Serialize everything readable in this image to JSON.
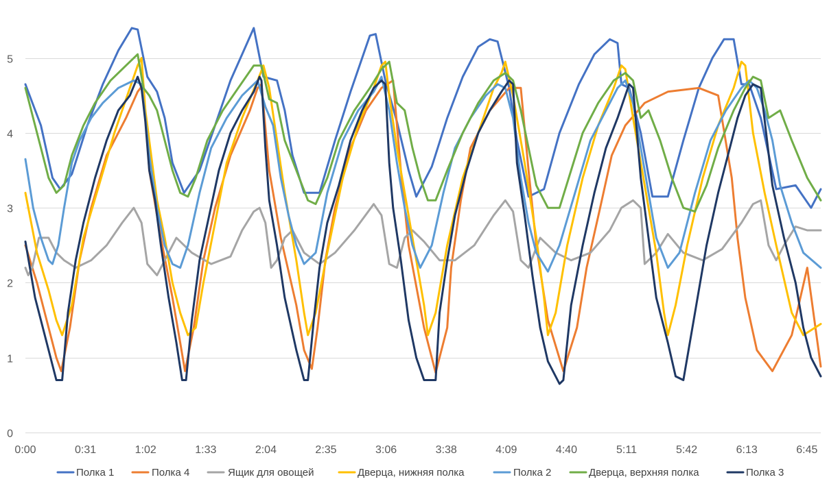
{
  "chart_data": {
    "type": "line",
    "title": "",
    "xlabel": "",
    "ylabel": "",
    "ylim": [
      0,
      5.5
    ],
    "x_tick_labels": [
      "0:00",
      "0:31",
      "1:02",
      "1:33",
      "2:04",
      "2:35",
      "3:06",
      "3:38",
      "4:09",
      "4:40",
      "5:11",
      "5:42",
      "6:13",
      "6:45"
    ],
    "y_tick_labels": [
      "0",
      "1",
      "2",
      "3",
      "4",
      "5"
    ],
    "x_range_minutes": [
      0,
      411
    ],
    "grid": "horizontal",
    "legend_position": "bottom",
    "series": [
      {
        "name": "Полка 1",
        "color": "#4472C4",
        "x": [
          0,
          8,
          14,
          18,
          24,
          32,
          40,
          48,
          55,
          58,
          63,
          68,
          72,
          76,
          82,
          90,
          98,
          106,
          118,
          123,
          130,
          134,
          138,
          144,
          152,
          160,
          168,
          178,
          181,
          186,
          192,
          198,
          202,
          210,
          218,
          226,
          234,
          240,
          244,
          250,
          254,
          260,
          268,
          276,
          286,
          294,
          302,
          306,
          308,
          312,
          318,
          324,
          332,
          340,
          348,
          355,
          361,
          366,
          370,
          374,
          380,
          388,
          398,
          406,
          411
        ],
        "values": [
          4.65,
          4.1,
          3.4,
          3.25,
          3.45,
          4.1,
          4.65,
          5.1,
          5.4,
          5.38,
          4.75,
          4.55,
          4.2,
          3.6,
          3.2,
          3.5,
          4.1,
          4.7,
          5.4,
          4.75,
          4.7,
          4.3,
          3.7,
          3.2,
          3.2,
          3.9,
          4.55,
          5.3,
          5.32,
          4.7,
          4.15,
          3.5,
          3.15,
          3.55,
          4.2,
          4.75,
          5.15,
          5.25,
          5.22,
          4.6,
          3.9,
          3.15,
          3.25,
          4.0,
          4.65,
          5.05,
          5.25,
          5.2,
          4.65,
          4.6,
          4.0,
          3.15,
          3.15,
          3.9,
          4.6,
          5.0,
          5.25,
          5.25,
          4.65,
          4.65,
          4.2,
          3.25,
          3.3,
          3.0,
          3.25
        ]
      },
      {
        "name": "Полка 4",
        "color": "#ED7D31",
        "x": [
          0,
          6,
          12,
          16,
          18.5,
          23,
          28,
          34,
          42,
          52,
          58,
          61,
          64,
          70,
          76,
          80,
          82.5,
          87,
          92,
          98,
          106,
          116,
          120,
          122,
          126,
          132,
          140,
          144,
          148,
          151,
          155,
          160,
          168,
          176,
          184,
          190,
          194,
          198,
          206,
          212,
          218,
          220,
          225,
          230,
          240,
          250,
          256,
          260,
          264,
          270,
          278,
          285,
          290,
          297,
          303,
          310,
          320,
          332,
          348,
          358,
          365,
          368,
          372,
          378,
          386,
          396,
          404,
          411
        ],
        "values": [
          2.5,
          2.0,
          1.4,
          1.0,
          0.82,
          1.4,
          2.3,
          3.0,
          3.7,
          4.2,
          4.55,
          4.65,
          3.5,
          2.6,
          1.8,
          1.2,
          0.82,
          1.4,
          2.3,
          3.0,
          3.7,
          4.3,
          4.6,
          4.65,
          3.5,
          2.6,
          1.7,
          1.1,
          0.85,
          1.4,
          2.3,
          3.0,
          3.8,
          4.3,
          4.6,
          4.7,
          3.5,
          2.5,
          1.4,
          0.8,
          1.4,
          2.2,
          3.1,
          3.8,
          4.3,
          4.6,
          4.6,
          3.5,
          2.5,
          1.5,
          0.82,
          1.4,
          2.2,
          3.0,
          3.7,
          4.1,
          4.4,
          4.55,
          4.6,
          4.5,
          3.4,
          2.6,
          1.8,
          1.1,
          0.82,
          1.3,
          2.2,
          0.88
        ]
      },
      {
        "name": "Ящик для овощей",
        "color": "#A5A5A5",
        "x": [
          0,
          1.5,
          3.5,
          7,
          12,
          16,
          20,
          26,
          34,
          42,
          50,
          56,
          60,
          63,
          68,
          72,
          78,
          86,
          96,
          106,
          112,
          118,
          121,
          124,
          127,
          130,
          134,
          138,
          144,
          152,
          160,
          170,
          180,
          184,
          188,
          192,
          196,
          200,
          206,
          214,
          222,
          232,
          242,
          248,
          252,
          256,
          260,
          266,
          274,
          282,
          292,
          302,
          308,
          314,
          318,
          320,
          326,
          332,
          340,
          350,
          360,
          370,
          376,
          380,
          384,
          388,
          392,
          398,
          404,
          411
        ],
        "values": [
          2.2,
          2.1,
          2.2,
          2.6,
          2.6,
          2.4,
          2.3,
          2.2,
          2.3,
          2.5,
          2.8,
          3.0,
          2.8,
          2.25,
          2.1,
          2.3,
          2.6,
          2.4,
          2.25,
          2.35,
          2.7,
          2.95,
          3.0,
          2.8,
          2.2,
          2.3,
          2.6,
          2.7,
          2.4,
          2.25,
          2.4,
          2.7,
          3.05,
          2.9,
          2.25,
          2.2,
          2.6,
          2.7,
          2.55,
          2.3,
          2.3,
          2.5,
          2.9,
          3.1,
          2.95,
          2.3,
          2.2,
          2.6,
          2.4,
          2.3,
          2.4,
          2.7,
          3.0,
          3.1,
          3.0,
          2.25,
          2.4,
          2.65,
          2.4,
          2.3,
          2.45,
          2.8,
          3.05,
          3.1,
          2.5,
          2.3,
          2.5,
          2.75,
          2.7,
          2.7
        ]
      },
      {
        "name": "Дверца, нижняя полка",
        "color": "#FFC000",
        "x": [
          0,
          6,
          12,
          16,
          19,
          24,
          30,
          38,
          46,
          54,
          58,
          60,
          62,
          65,
          68,
          72,
          76,
          80,
          84,
          88,
          92,
          98,
          104,
          112,
          120,
          123,
          126,
          130,
          134,
          140,
          144,
          146,
          150,
          156,
          164,
          172,
          180,
          184,
          186,
          188,
          192,
          196,
          200,
          206,
          208,
          212,
          218,
          226,
          234,
          242,
          246,
          248,
          252,
          258,
          264,
          268,
          270,
          274,
          280,
          288,
          296,
          304,
          308,
          310,
          314,
          320,
          326,
          330,
          332,
          336,
          342,
          350,
          358,
          366,
          370,
          372,
          376,
          382,
          388,
          396,
          402,
          411
        ],
        "values": [
          3.2,
          2.4,
          1.9,
          1.5,
          1.3,
          1.7,
          2.6,
          3.3,
          4.0,
          4.6,
          4.9,
          5.0,
          4.3,
          3.7,
          3.1,
          2.6,
          2.0,
          1.6,
          1.3,
          1.4,
          2.0,
          2.8,
          3.6,
          4.2,
          4.7,
          4.9,
          4.6,
          3.9,
          3.2,
          2.3,
          1.6,
          1.3,
          1.6,
          2.4,
          3.4,
          4.1,
          4.6,
          4.9,
          4.95,
          4.5,
          3.8,
          3.2,
          2.6,
          1.7,
          1.3,
          1.6,
          2.5,
          3.4,
          4.0,
          4.6,
          4.8,
          4.95,
          4.5,
          3.6,
          2.6,
          1.8,
          1.3,
          1.6,
          2.5,
          3.4,
          4.1,
          4.6,
          4.9,
          4.85,
          4.2,
          3.3,
          2.4,
          1.6,
          1.3,
          1.7,
          2.5,
          3.4,
          4.1,
          4.6,
          4.95,
          4.9,
          4.0,
          3.2,
          2.5,
          1.6,
          1.3,
          1.45
        ]
      },
      {
        "name": "Полка 2",
        "color": "#5B9BD5",
        "x": [
          0,
          4,
          8,
          12,
          14,
          17,
          20,
          24,
          28,
          34,
          40,
          48,
          56,
          60,
          62,
          64,
          68,
          72,
          76,
          80,
          84,
          90,
          96,
          104,
          112,
          120,
          124,
          128,
          132,
          136,
          140,
          144,
          150,
          156,
          164,
          172,
          180,
          184,
          188,
          192,
          196,
          200,
          204,
          210,
          216,
          222,
          230,
          238,
          244,
          248,
          252,
          256,
          260,
          264,
          270,
          276,
          284,
          292,
          300,
          306,
          310,
          314,
          318,
          322,
          326,
          332,
          338,
          346,
          354,
          362,
          370,
          374,
          378,
          382,
          386,
          390,
          396,
          402,
          411
        ],
        "values": [
          3.65,
          3.0,
          2.6,
          2.3,
          2.25,
          2.5,
          3.0,
          3.6,
          3.9,
          4.2,
          4.4,
          4.6,
          4.7,
          4.65,
          4.2,
          3.7,
          3.0,
          2.5,
          2.25,
          2.2,
          2.5,
          3.2,
          3.8,
          4.2,
          4.5,
          4.7,
          4.35,
          4.1,
          3.4,
          2.9,
          2.5,
          2.25,
          2.4,
          3.2,
          3.9,
          4.3,
          4.55,
          4.75,
          4.3,
          3.6,
          3.0,
          2.5,
          2.2,
          2.5,
          3.2,
          3.8,
          4.2,
          4.5,
          4.65,
          4.6,
          4.2,
          3.4,
          2.8,
          2.4,
          2.15,
          2.5,
          3.2,
          3.9,
          4.3,
          4.6,
          4.7,
          4.4,
          3.8,
          3.2,
          2.6,
          2.2,
          2.4,
          3.2,
          3.9,
          4.3,
          4.6,
          4.7,
          4.6,
          4.3,
          3.9,
          3.3,
          2.8,
          2.4,
          2.2
        ]
      },
      {
        "name": "Дверца, верхняя полка",
        "color": "#70AD47",
        "x": [
          0,
          4,
          8,
          12,
          16,
          20,
          24,
          30,
          36,
          44,
          52,
          58,
          61,
          64,
          68,
          72,
          76,
          80,
          84,
          88,
          94,
          102,
          110,
          118,
          122,
          126,
          130,
          134,
          140,
          146,
          150,
          156,
          162,
          170,
          178,
          184,
          188,
          192,
          196,
          200,
          204,
          208,
          212,
          218,
          226,
          234,
          242,
          248,
          252,
          256,
          260,
          264,
          270,
          276,
          282,
          288,
          296,
          304,
          310,
          314,
          318,
          322,
          328,
          334,
          340,
          346,
          352,
          358,
          366,
          372,
          376,
          380,
          384,
          390,
          396,
          404,
          411
        ],
        "values": [
          4.6,
          4.2,
          3.8,
          3.4,
          3.2,
          3.3,
          3.7,
          4.1,
          4.4,
          4.7,
          4.9,
          5.05,
          4.6,
          4.5,
          4.3,
          3.9,
          3.5,
          3.2,
          3.15,
          3.4,
          3.9,
          4.3,
          4.6,
          4.9,
          4.9,
          4.45,
          4.4,
          3.9,
          3.5,
          3.1,
          3.05,
          3.4,
          3.9,
          4.3,
          4.6,
          4.85,
          4.95,
          4.4,
          4.3,
          3.8,
          3.4,
          3.1,
          3.1,
          3.5,
          4.0,
          4.4,
          4.7,
          4.8,
          4.7,
          4.3,
          3.8,
          3.3,
          3.0,
          3.0,
          3.5,
          4.0,
          4.4,
          4.7,
          4.8,
          4.7,
          4.2,
          4.3,
          3.9,
          3.4,
          3.0,
          2.95,
          3.3,
          3.8,
          4.3,
          4.6,
          4.75,
          4.7,
          4.2,
          4.3,
          3.9,
          3.4,
          3.1
        ]
      },
      {
        "name": "Полка 3",
        "color": "#1F3864",
        "x": [
          0,
          5,
          10,
          14,
          16,
          19,
          22,
          26,
          30,
          36,
          42,
          48,
          54,
          58,
          60,
          62,
          64,
          67,
          70,
          74,
          78,
          81,
          83,
          86,
          90,
          95,
          100,
          106,
          112,
          118,
          121,
          122,
          124,
          126,
          130,
          134,
          140,
          144,
          146,
          149,
          152,
          156,
          162,
          168,
          174,
          180,
          184,
          186,
          188,
          190,
          194,
          198,
          202,
          206,
          212,
          214,
          218,
          222,
          228,
          234,
          240,
          246,
          250,
          252,
          254,
          258,
          262,
          266,
          270,
          276,
          278,
          282,
          288,
          294,
          300,
          306,
          310,
          312,
          314,
          318,
          322,
          326,
          332,
          336,
          340,
          346,
          352,
          358,
          364,
          368,
          372,
          376,
          380,
          386,
          392,
          398,
          402,
          406,
          411
        ],
        "values": [
          2.55,
          1.8,
          1.3,
          0.9,
          0.7,
          0.7,
          1.6,
          2.3,
          2.8,
          3.4,
          3.9,
          4.3,
          4.5,
          4.75,
          4.6,
          4.15,
          3.5,
          3.1,
          2.5,
          1.8,
          1.2,
          0.7,
          0.7,
          1.5,
          2.3,
          2.9,
          3.5,
          4.0,
          4.3,
          4.55,
          4.75,
          4.7,
          3.8,
          3.1,
          2.5,
          1.8,
          1.1,
          0.7,
          0.7,
          1.5,
          2.2,
          2.8,
          3.3,
          3.9,
          4.3,
          4.6,
          4.7,
          4.65,
          3.6,
          3.0,
          2.3,
          1.5,
          1.0,
          0.7,
          0.7,
          1.6,
          2.3,
          2.9,
          3.5,
          4.0,
          4.3,
          4.55,
          4.7,
          4.65,
          3.6,
          2.9,
          2.1,
          1.4,
          0.95,
          0.65,
          0.7,
          1.7,
          2.5,
          3.2,
          3.8,
          4.2,
          4.5,
          4.65,
          4.6,
          3.4,
          2.6,
          1.8,
          1.2,
          0.75,
          0.7,
          1.6,
          2.5,
          3.2,
          3.8,
          4.2,
          4.5,
          4.65,
          4.6,
          3.3,
          2.6,
          2.0,
          1.4,
          1.0,
          0.75
        ]
      }
    ]
  }
}
